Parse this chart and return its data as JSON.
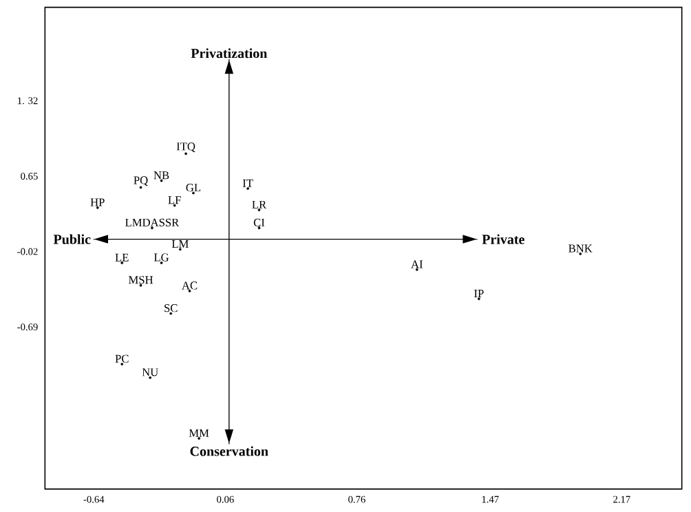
{
  "chart_data": {
    "type": "scatter",
    "marker": "circle",
    "xlim": [
      -0.9,
      2.49
    ],
    "ylim": [
      -2.13,
      2.15
    ],
    "xticks": [
      -0.64,
      0.06,
      0.76,
      1.47,
      2.17
    ],
    "yticks": [
      {
        "value": 1.32,
        "label": "1. 32"
      },
      0.65,
      -0.02,
      -0.69
    ],
    "ref_lines": [
      {
        "axis": "x",
        "value": 0.08
      },
      {
        "axis": "y",
        "value": 0.09
      }
    ],
    "annotations": [
      "Privatization",
      "Conservation",
      "Public",
      "Private"
    ],
    "series": [
      {
        "name": "ITQ",
        "color": "#000000",
        "x": [
          -0.15
        ],
        "values": [
          0.85
        ]
      },
      {
        "name": "NB",
        "color": "#000000",
        "x": [
          -0.28
        ],
        "values": [
          0.61
        ]
      },
      {
        "name": "PQ",
        "color": "#000000",
        "x": [
          -0.39
        ],
        "values": [
          0.55
        ]
      },
      {
        "name": "GL",
        "color": "#000000",
        "x": [
          -0.11
        ],
        "values": [
          0.5
        ]
      },
      {
        "name": "LF",
        "color": "#000000",
        "x": [
          -0.21
        ],
        "values": [
          0.39
        ]
      },
      {
        "name": "HP",
        "color": "#000000",
        "x": [
          -0.62
        ],
        "values": [
          0.37
        ]
      },
      {
        "name": "LMDASSR",
        "color": "#000000",
        "x": [
          -0.33
        ],
        "values": [
          0.19
        ]
      },
      {
        "name": "LM",
        "color": "#000000",
        "x": [
          -0.18
        ],
        "values": [
          0.0
        ]
      },
      {
        "name": "LE",
        "color": "#000000",
        "x": [
          -0.49
        ],
        "values": [
          -0.12
        ]
      },
      {
        "name": "LG",
        "color": "#000000",
        "x": [
          -0.28
        ],
        "values": [
          -0.12
        ]
      },
      {
        "name": "MSH",
        "color": "#000000",
        "x": [
          -0.39
        ],
        "values": [
          -0.32
        ]
      },
      {
        "name": "AC",
        "color": "#000000",
        "x": [
          -0.13
        ],
        "values": [
          -0.37
        ]
      },
      {
        "name": "SC",
        "color": "#000000",
        "x": [
          -0.23
        ],
        "values": [
          -0.57
        ]
      },
      {
        "name": "PC",
        "color": "#000000",
        "x": [
          -0.49
        ],
        "values": [
          -1.02
        ]
      },
      {
        "name": "NU",
        "color": "#000000",
        "x": [
          -0.34
        ],
        "values": [
          -1.14
        ]
      },
      {
        "name": "MM",
        "color": "#000000",
        "x": [
          -0.08
        ],
        "values": [
          -1.68
        ]
      },
      {
        "name": "IT",
        "color": "#000000",
        "x": [
          0.18
        ],
        "values": [
          0.54
        ]
      },
      {
        "name": "LR",
        "color": "#000000",
        "x": [
          0.24
        ],
        "values": [
          0.35
        ]
      },
      {
        "name": "CI",
        "color": "#000000",
        "x": [
          0.24
        ],
        "values": [
          0.19
        ]
      },
      {
        "name": "BNK",
        "color": "#000000",
        "x": [
          1.95
        ],
        "values": [
          -0.04
        ]
      },
      {
        "name": "AI",
        "color": "#000000",
        "x": [
          1.08
        ],
        "values": [
          -0.18
        ]
      },
      {
        "name": "IP",
        "color": "#000000",
        "x": [
          1.41
        ],
        "values": [
          -0.44
        ]
      }
    ]
  }
}
